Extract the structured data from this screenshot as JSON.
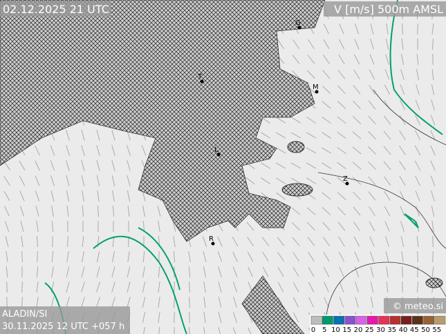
{
  "header": {
    "valid_time": "02.12.2025 21 UTC",
    "field": "V [m/s] 500m AMSL"
  },
  "footer": {
    "model": "ALADIN/SI",
    "run": "30.11.2025 12 UTC +057 h",
    "credit": "© meteo.si"
  },
  "cities": [
    {
      "label": "G"
    },
    {
      "label": "M"
    },
    {
      "label": "T"
    },
    {
      "label": "L"
    },
    {
      "label": "Z"
    },
    {
      "label": "R"
    }
  ],
  "legend": {
    "labels": [
      0,
      5,
      10,
      15,
      20,
      25,
      30,
      35,
      40,
      45,
      50,
      55
    ],
    "colors": [
      "#bdbdbd",
      "#00996c",
      "#0a6fb4",
      "#8a52cf",
      "#d662ea",
      "#e619ad",
      "#e8325a",
      "#b43232",
      "#7a1e1e",
      "#5a3214",
      "#956335",
      "#b99b6b"
    ]
  }
}
